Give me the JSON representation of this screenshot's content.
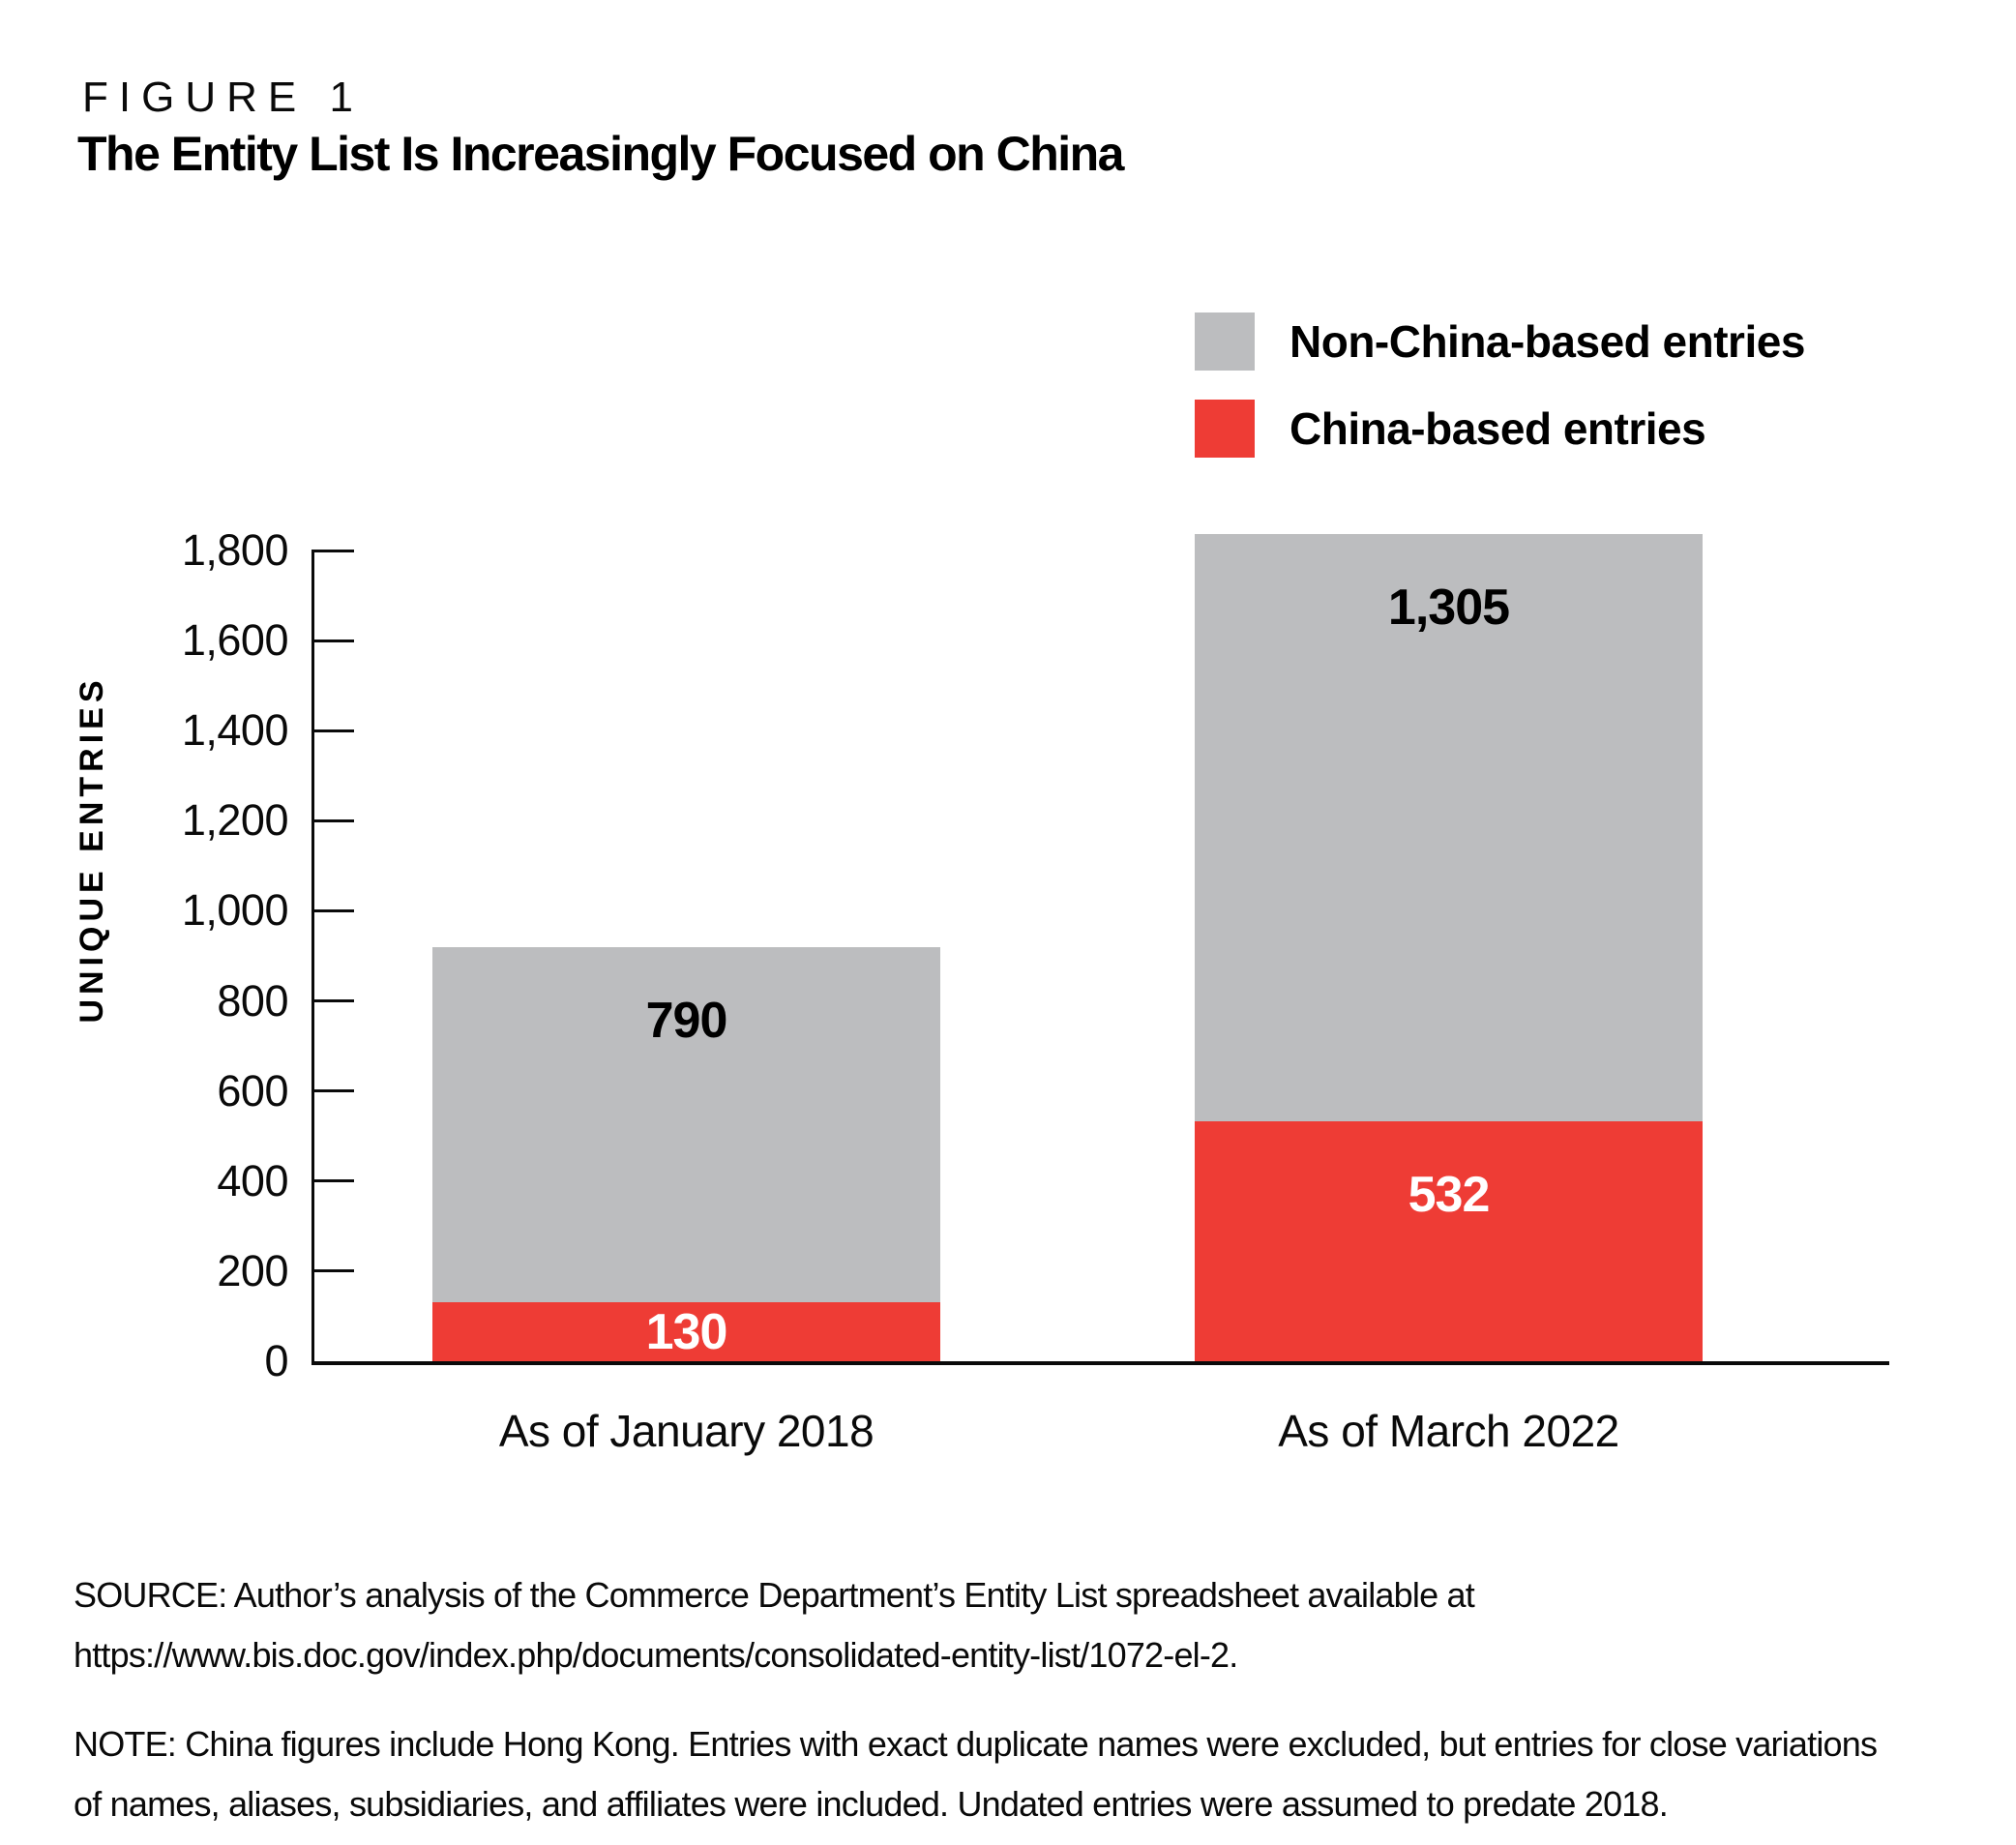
{
  "figure_label": "FIGURE 1",
  "title": "The Entity List Is Increasingly Focused on China",
  "legend": {
    "position": "top-right",
    "items": [
      {
        "label": "Non-China-based entries",
        "color": "#BCBDBF"
      },
      {
        "label": "China-based entries",
        "color": "#EE3C35"
      }
    ]
  },
  "chart_data": {
    "type": "bar",
    "stacked": true,
    "title": "The Entity List Is Increasingly Focused on China",
    "categories": [
      "As of January 2018",
      "As of March 2022"
    ],
    "series": [
      {
        "name": "China-based entries",
        "color": "#EE3C35",
        "label_color": "#FFFFFF",
        "values": [
          130,
          532
        ],
        "value_labels": [
          "130",
          "532"
        ]
      },
      {
        "name": "Non-China-based entries",
        "color": "#BCBDBF",
        "label_color": "#000000",
        "values": [
          790,
          1305
        ],
        "value_labels": [
          "790",
          "1,305"
        ]
      }
    ],
    "totals": [
      920,
      1837
    ],
    "xlabel": "",
    "ylabel": "UNIQUE ENTRIES",
    "ylim": [
      0,
      1800
    ],
    "ytick_values": [
      1800,
      1600,
      1400,
      1200,
      1000,
      800,
      600,
      400,
      200,
      0
    ],
    "ytick_labels": [
      "1,800",
      "1,600",
      "1,400",
      "1,200",
      "1,000",
      "800",
      "600",
      "400",
      "200",
      "0"
    ],
    "grid": false,
    "legend_position": "top-right"
  },
  "source": {
    "line1": "SOURCE: Author’s analysis of the Commerce Department’s Entity List spreadsheet available at",
    "line2": "https://www.bis.doc.gov/index.php/documents/consolidated-entity-list/1072-el-2."
  },
  "note": {
    "line1": "NOTE: China figures include Hong Kong. Entries with exact duplicate names were excluded, but entries for close variations",
    "line2": "of names, aliases, subsidiaries, and affiliates were included. Undated entries were assumed to predate 2018."
  }
}
